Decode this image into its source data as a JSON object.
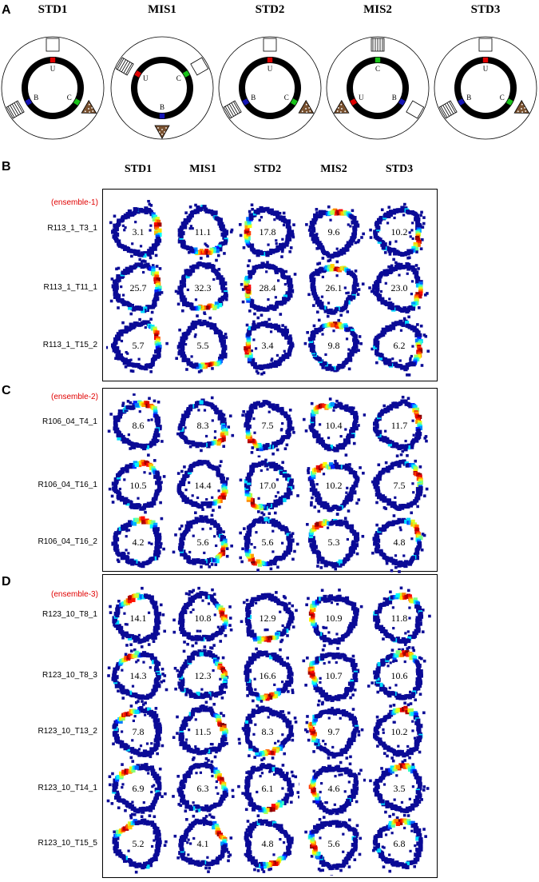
{
  "panelA": {
    "letter": "A",
    "conditions": [
      {
        "title": "STD1",
        "labels": {
          "u": "U",
          "c": "C",
          "b": "B"
        }
      },
      {
        "title": "MIS1",
        "labels": {
          "u": "U",
          "c": "C",
          "b": "B"
        }
      },
      {
        "title": "STD2",
        "labels": {
          "u": "U",
          "c": "C",
          "b": "B"
        }
      },
      {
        "title": "MIS2",
        "labels": {
          "u": "U",
          "c": "C",
          "b": "B"
        }
      },
      {
        "title": "STD3",
        "labels": {
          "u": "U",
          "c": "C",
          "b": "B"
        }
      }
    ]
  },
  "columns": [
    "STD1",
    "MIS1",
    "STD2",
    "MIS2",
    "STD3"
  ],
  "panels": [
    {
      "letter": "B",
      "ensemble": "(ensemble-1)",
      "rows": [
        {
          "cell": "R113_1_T3_1",
          "rates": [
            "3.1",
            "11.1",
            "17.8",
            "9.6",
            "10.2"
          ]
        },
        {
          "cell": "R113_1_T11_1",
          "rates": [
            "25.7",
            "32.3",
            "28.4",
            "26.1",
            "23.0"
          ]
        },
        {
          "cell": "R113_1_T15_2",
          "rates": [
            "5.7",
            "5.5",
            "3.4",
            "9.8",
            "6.2"
          ]
        }
      ]
    },
    {
      "letter": "C",
      "ensemble": "(ensemble-2)",
      "rows": [
        {
          "cell": "R106_04_T4_1",
          "rates": [
            "8.6",
            "8.3",
            "7.5",
            "10.4",
            "11.7"
          ]
        },
        {
          "cell": "R106_04_T16_1",
          "rates": [
            "10.5",
            "14.4",
            "17.0",
            "10.2",
            "7.5"
          ]
        },
        {
          "cell": "R106_04_T16_2",
          "rates": [
            "4.2",
            "5.6",
            "5.6",
            "5.3",
            "4.8"
          ]
        }
      ]
    },
    {
      "letter": "D",
      "ensemble": "(ensemble-3)",
      "rows": [
        {
          "cell": "R123_10_T8_1",
          "rates": [
            "14.1",
            "10.8",
            "12.9",
            "10.9",
            "11.8"
          ]
        },
        {
          "cell": "R123_10_T8_3",
          "rates": [
            "14.3",
            "12.3",
            "16.6",
            "10.7",
            "10.6"
          ]
        },
        {
          "cell": "R123_10_T13_2",
          "rates": [
            "7.8",
            "11.5",
            "8.3",
            "9.7",
            "10.2"
          ]
        },
        {
          "cell": "R123_10_T14_1",
          "rates": [
            "6.9",
            "6.3",
            "6.1",
            "4.6",
            "3.5"
          ]
        },
        {
          "cell": "R123_10_T15_5",
          "rates": [
            "5.2",
            "4.1",
            "4.8",
            "5.6",
            "6.8"
          ]
        }
      ]
    }
  ]
}
